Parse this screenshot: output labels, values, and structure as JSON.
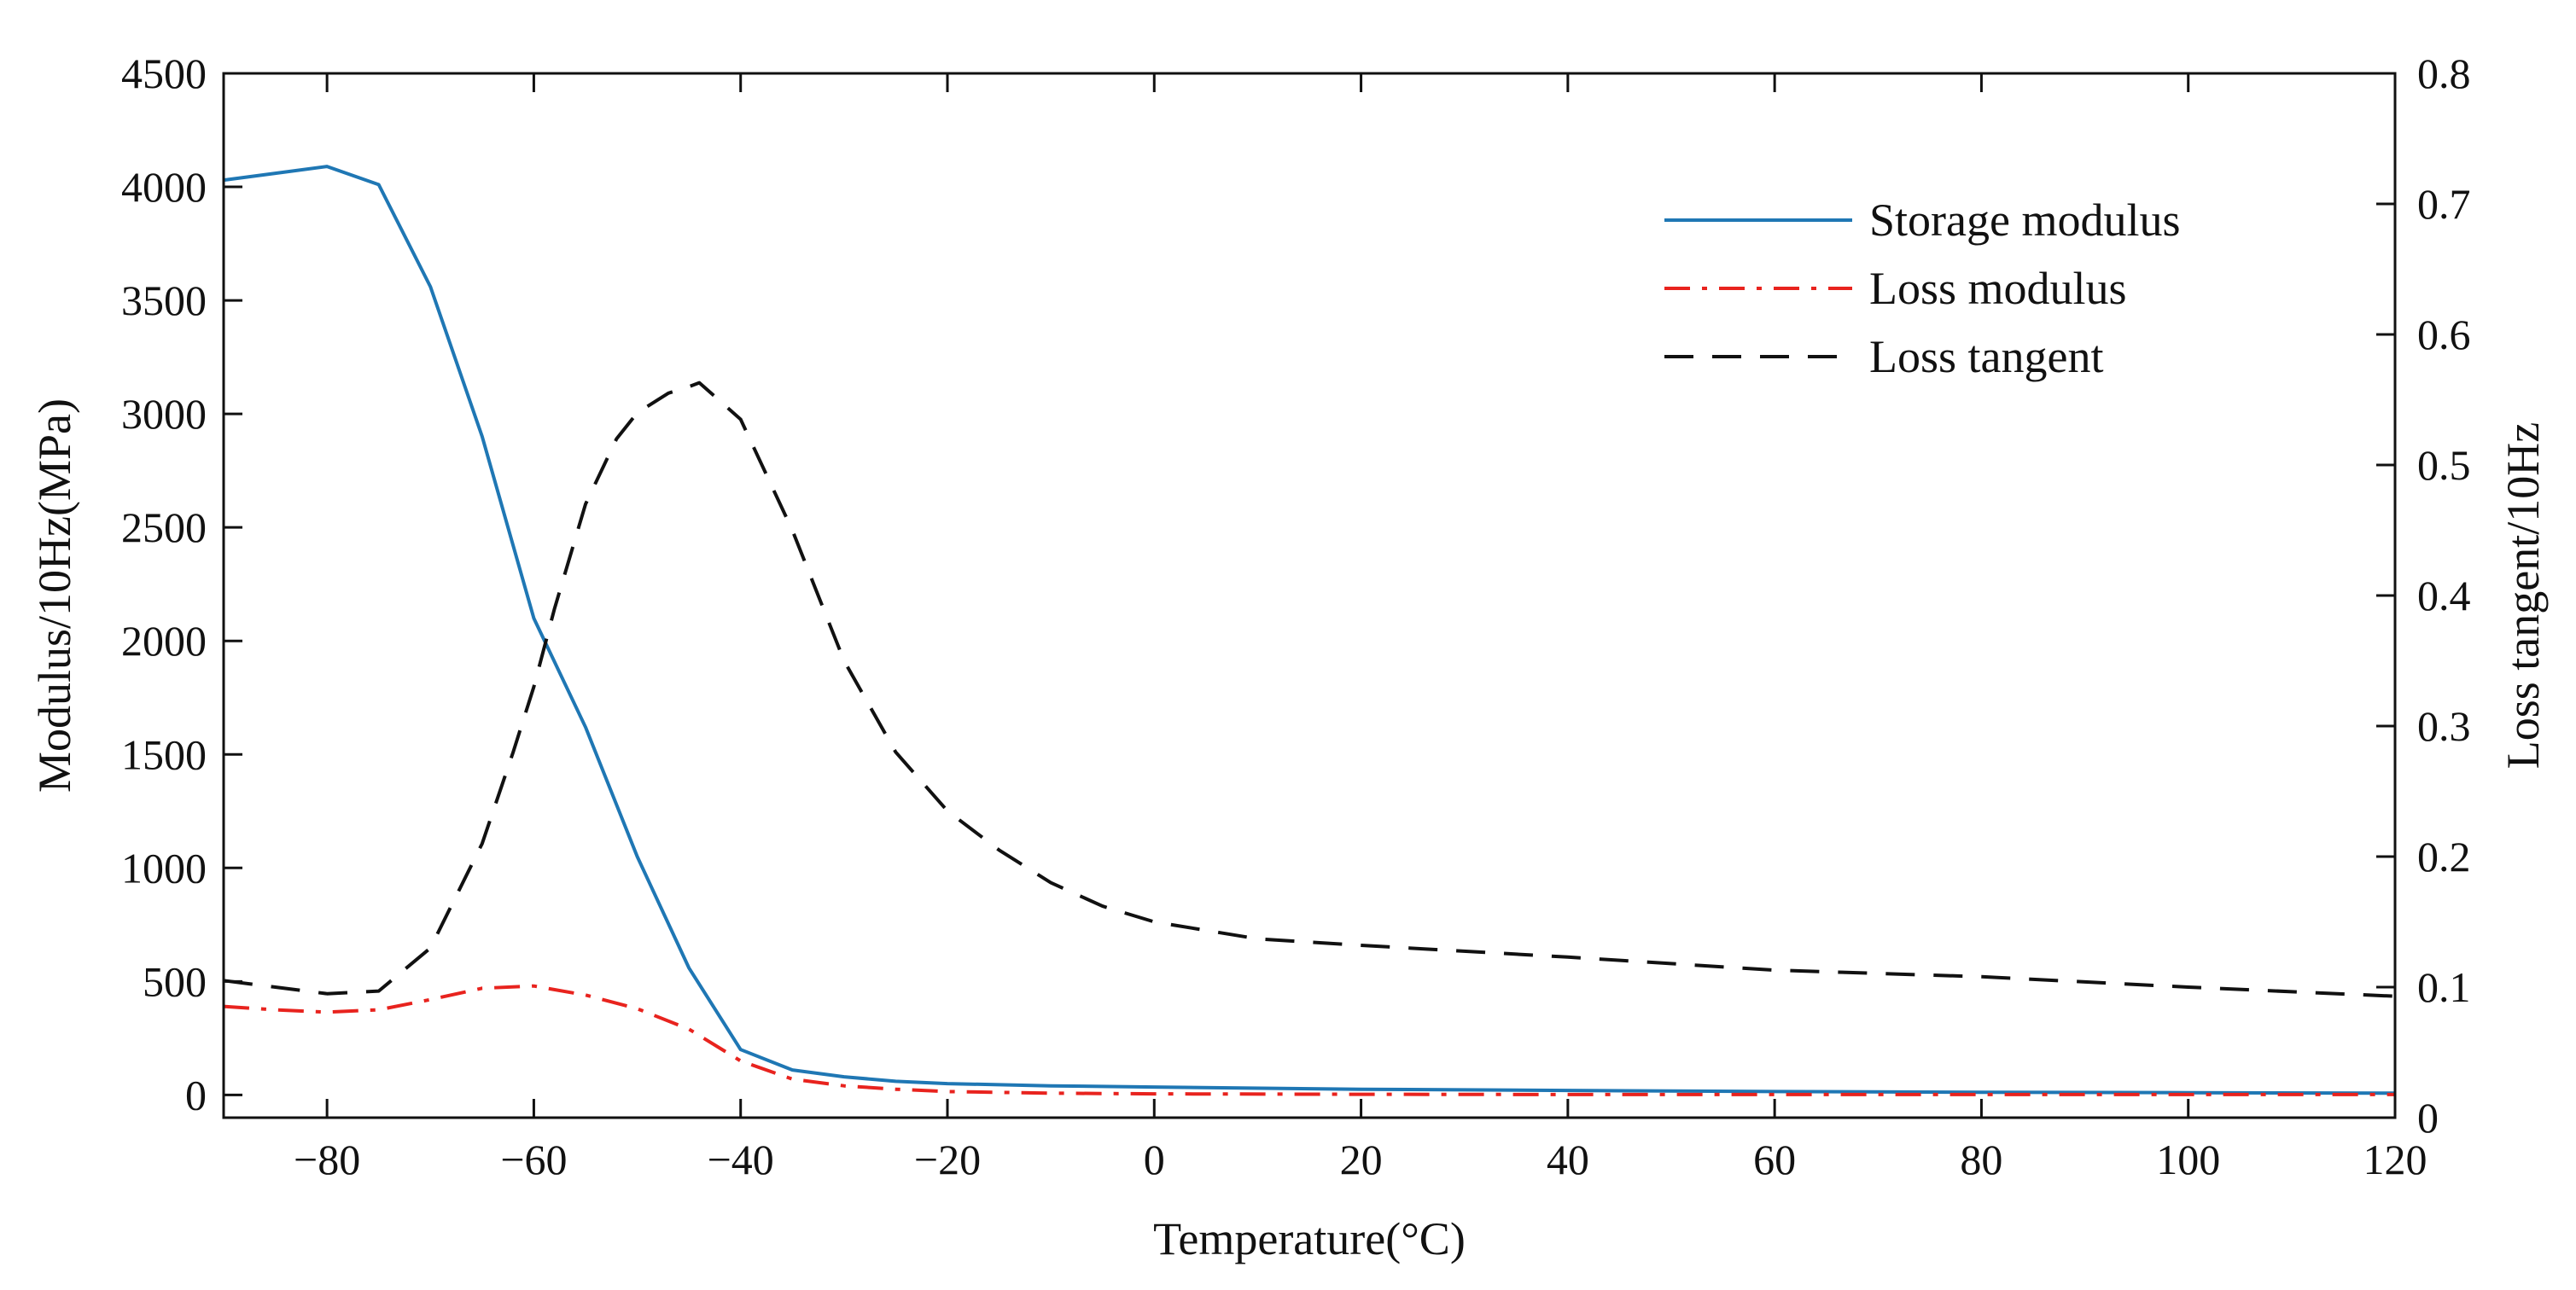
{
  "chart_data": {
    "type": "line",
    "title": "",
    "xlabel": "Temperature(°C)",
    "ylabel": "Modulus/10Hz(MPa)",
    "y2label": "Loss tangent/10Hz",
    "xlim": [
      -90,
      120
    ],
    "ylim": [
      -100,
      4500
    ],
    "y2lim": [
      0,
      0.8
    ],
    "xticks": [
      "−80",
      "−60",
      "−40",
      "−20",
      "0",
      "20",
      "40",
      "60",
      "80",
      "100",
      "120"
    ],
    "xtick_values": [
      -80,
      -60,
      -40,
      -20,
      0,
      20,
      40,
      60,
      80,
      100,
      120
    ],
    "yticks": [
      "0",
      "500",
      "1000",
      "1500",
      "2000",
      "2500",
      "3000",
      "3500",
      "4000",
      "4500"
    ],
    "ytick_values": [
      0,
      500,
      1000,
      1500,
      2000,
      2500,
      3000,
      3500,
      4000,
      4500
    ],
    "y2ticks": [
      "0",
      "0.1",
      "0.2",
      "0.3",
      "0.4",
      "0.5",
      "0.6",
      "0.7",
      "0.8"
    ],
    "y2tick_values": [
      0,
      0.1,
      0.2,
      0.3,
      0.4,
      0.5,
      0.6,
      0.7,
      0.8
    ],
    "grid": false,
    "legend_position": "top-right",
    "series": [
      {
        "name": "Storage modulus",
        "axis": "left",
        "color": "#1f77b4",
        "dash": "solid",
        "x": [
          -90,
          -85,
          -80,
          -75,
          -70,
          -65,
          -60,
          -55,
          -50,
          -45,
          -40,
          -35,
          -30,
          -25,
          -20,
          -10,
          0,
          20,
          40,
          60,
          80,
          100,
          120
        ],
        "y": [
          4030,
          4060,
          4090,
          4010,
          3560,
          2900,
          2100,
          1620,
          1050,
          560,
          200,
          110,
          80,
          60,
          50,
          40,
          35,
          25,
          20,
          15,
          12,
          10,
          8
        ]
      },
      {
        "name": "Loss modulus",
        "axis": "left",
        "color": "#e8231e",
        "dash": "dashdot",
        "x": [
          -90,
          -85,
          -80,
          -75,
          -70,
          -65,
          -60,
          -55,
          -50,
          -45,
          -40,
          -35,
          -30,
          -25,
          -20,
          -10,
          0,
          20,
          40,
          60,
          80,
          100,
          120
        ],
        "y": [
          390,
          375,
          365,
          375,
          420,
          470,
          480,
          440,
          380,
          290,
          150,
          70,
          40,
          25,
          15,
          8,
          5,
          3,
          2,
          2,
          2,
          2,
          2
        ]
      },
      {
        "name": "Loss tangent",
        "axis": "right",
        "color": "#111111",
        "dash": "dashed",
        "x": [
          -90,
          -85,
          -80,
          -75,
          -70,
          -65,
          -62,
          -60,
          -58,
          -55,
          -52,
          -50,
          -47,
          -45,
          -44,
          -40,
          -35,
          -30,
          -25,
          -20,
          -15,
          -10,
          -5,
          0,
          10,
          20,
          40,
          60,
          80,
          100,
          120
        ],
        "y": [
          0.105,
          0.1,
          0.095,
          0.097,
          0.13,
          0.21,
          0.28,
          0.33,
          0.39,
          0.47,
          0.52,
          0.54,
          0.555,
          0.56,
          0.563,
          0.535,
          0.45,
          0.35,
          0.28,
          0.235,
          0.205,
          0.18,
          0.162,
          0.15,
          0.137,
          0.132,
          0.123,
          0.113,
          0.108,
          0.1,
          0.093
        ]
      }
    ]
  }
}
